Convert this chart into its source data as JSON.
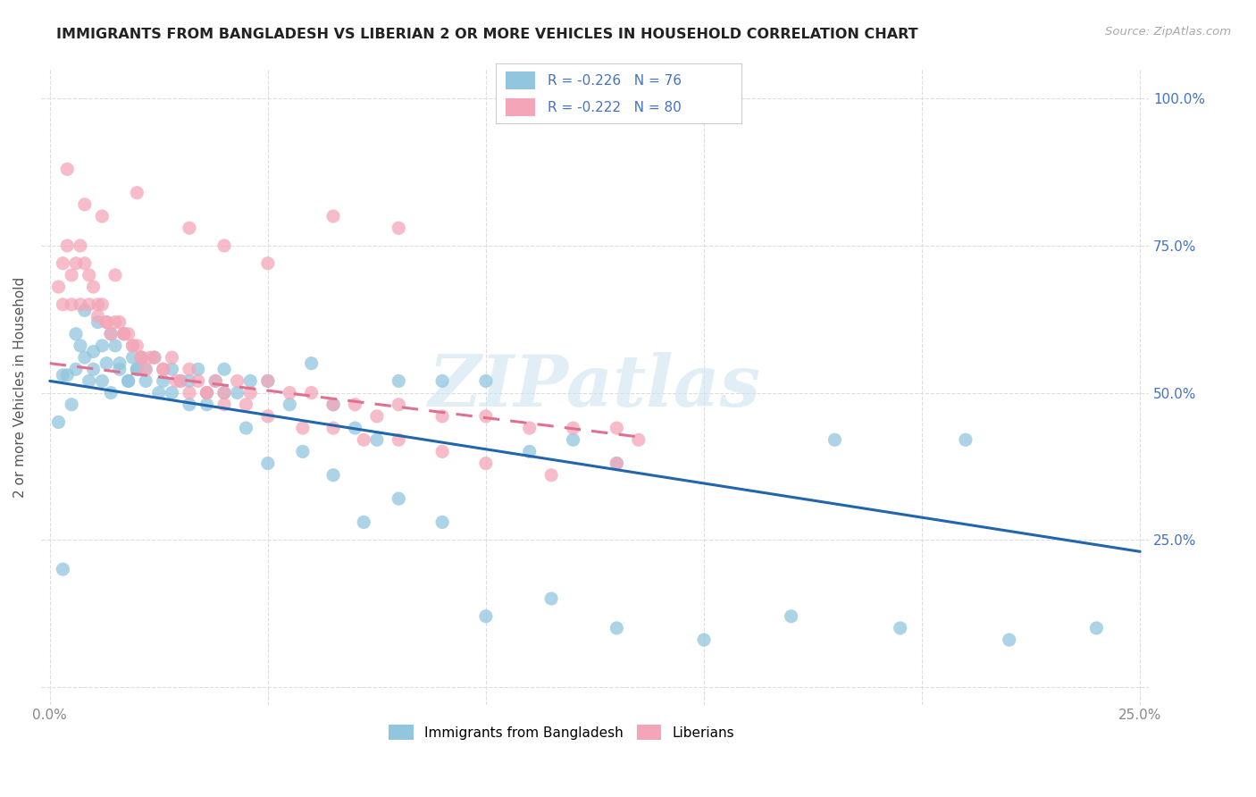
{
  "title": "IMMIGRANTS FROM BANGLADESH VS LIBERIAN 2 OR MORE VEHICLES IN HOUSEHOLD CORRELATION CHART",
  "source": "Source: ZipAtlas.com",
  "ylabel_label": "2 or more Vehicles in Household",
  "legend_label1": "Immigrants from Bangladesh",
  "legend_label2": "Liberians",
  "R1": -0.226,
  "N1": 76,
  "R2": -0.222,
  "N2": 80,
  "color1": "#92c5de",
  "color2": "#f4a6b8",
  "trendline1_color": "#2166ac",
  "trendline2_color": "#e07090",
  "bg_color": "#ffffff",
  "grid_color": "#dddddd",
  "xmin": -0.002,
  "xmax": 0.252,
  "ymin": -0.03,
  "ymax": 1.05,
  "trend1_x0": 0.0,
  "trend1_x1": 0.25,
  "trend1_y0": 0.52,
  "trend1_y1": 0.23,
  "trend2_x0": 0.0,
  "trend2_x1": 0.135,
  "trend2_y0": 0.55,
  "trend2_y1": 0.425,
  "watermark": "ZIPatlas",
  "tick_color": "#4472c4",
  "left_tick_color": "#888888"
}
